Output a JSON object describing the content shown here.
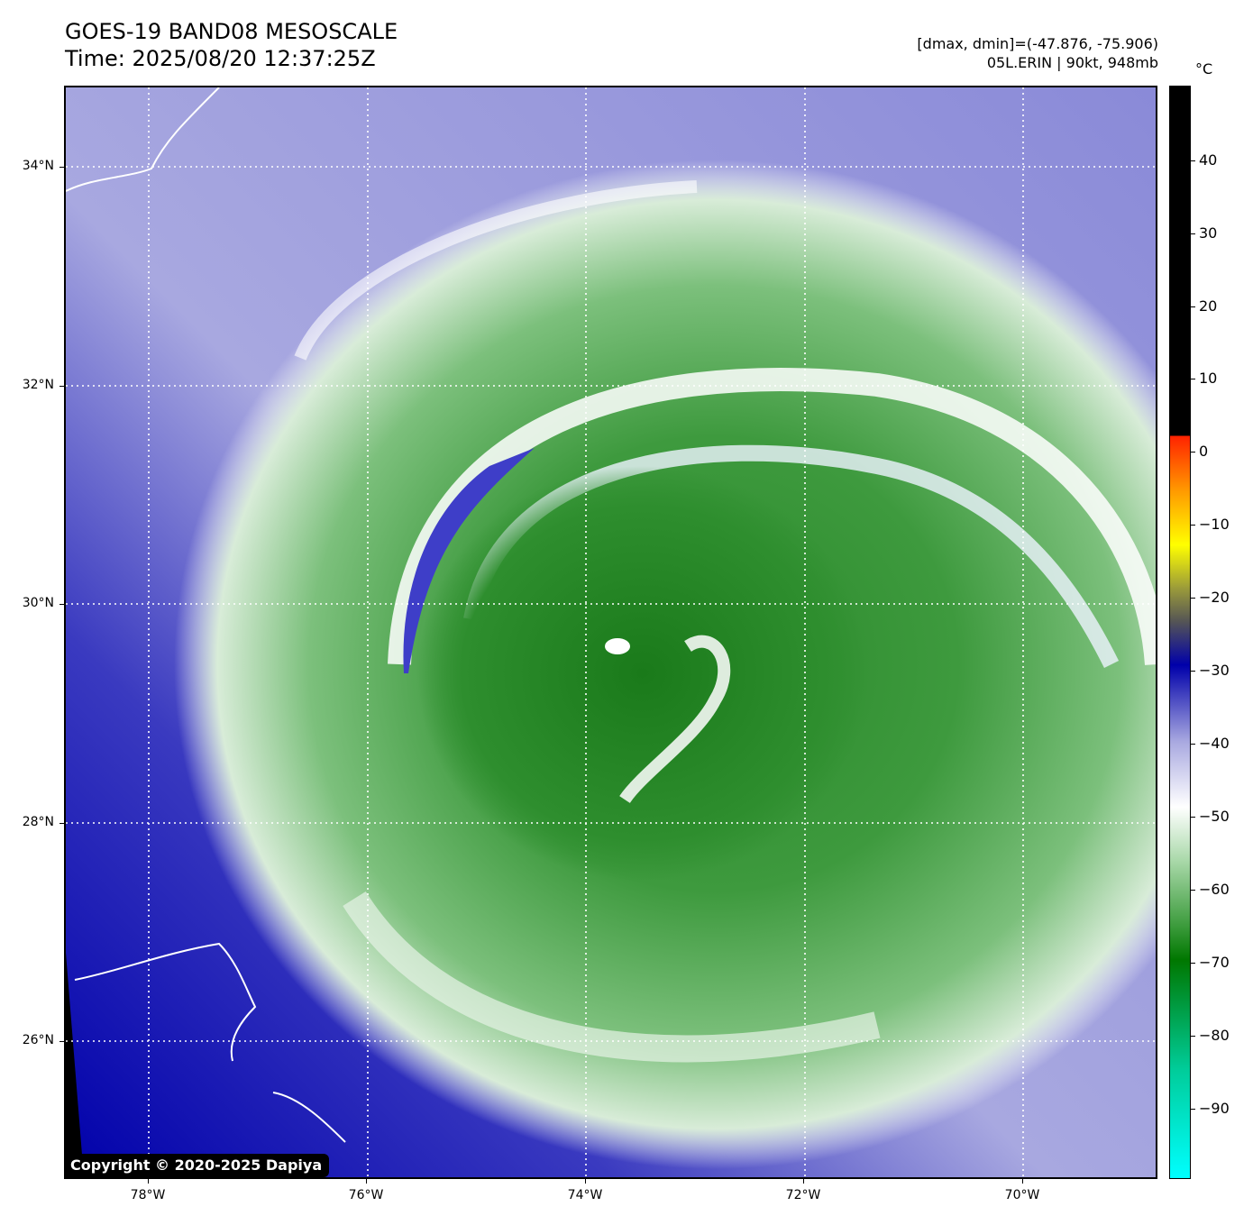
{
  "header": {
    "title": "GOES-19 BAND08 MESOSCALE",
    "time": "Time: 2025/08/20 12:37:25Z",
    "range_text": "[dmax, dmin]=(-47.876, -75.906)",
    "storm_text": "05L.ERIN | 90kt, 948mb"
  },
  "axes": {
    "lat_ticks": [
      "34°N",
      "32°N",
      "30°N",
      "28°N",
      "26°N"
    ],
    "lon_ticks": [
      "78°W",
      "76°W",
      "74°W",
      "72°W",
      "70°W"
    ]
  },
  "colorbar": {
    "unit": "°C",
    "ticks": [
      "40",
      "30",
      "20",
      "10",
      "0",
      "−10",
      "−20",
      "−30",
      "−40",
      "−50",
      "−60",
      "−70",
      "−80",
      "−90"
    ],
    "colors": {
      "warm": "#000000",
      "red": "#ff2200",
      "orange": "#ff9900",
      "yellow": "#ffff00",
      "olive": "#9a9a3a",
      "gray": "#555555",
      "navy": "#0000aa",
      "lavender": "#a8a8e0",
      "white": "#ffffff",
      "pale_green": "#a8d8a8",
      "green": "#3a9a3a",
      "dark_green": "#007700",
      "teal": "#00cc99",
      "cyan": "#00ffff"
    }
  },
  "copyright": "Copyright © 2020-2025 Dapiya"
}
